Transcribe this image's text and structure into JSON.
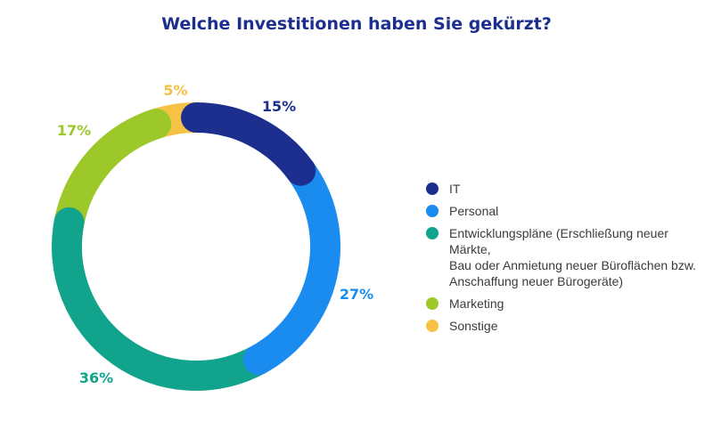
{
  "chart_data": {
    "type": "pie",
    "title": "Welche Investitionen haben Sie gekürzt?",
    "categories": [
      "IT",
      "Personal",
      "Entwicklungspläne (Erschließung neuer Märkte,\nBau oder Anmietung neuer Büroflächen bzw.\nAnschaffung neuer Bürogeräte)",
      "Marketing",
      "Sonstige"
    ],
    "values": [
      15,
      27,
      36,
      17,
      5
    ],
    "value_labels": [
      "15%",
      "27%",
      "36%",
      "17%",
      "5%"
    ],
    "colors": [
      "#1c2f8f",
      "#1a8cf0",
      "#12a38c",
      "#9cc82a",
      "#f5c246"
    ],
    "donut": true,
    "legend_position": "right"
  }
}
